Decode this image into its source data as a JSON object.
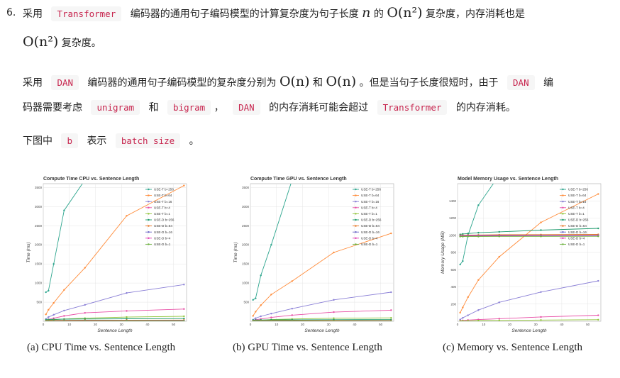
{
  "item": {
    "number": "6.",
    "p1_a": "采用",
    "p1_code": "Transformer",
    "p1_b": "编码器的通用句子编码模型的计算复杂度为句子长度",
    "p1_n": "n",
    "p1_c": "的",
    "p1_math": "O(n²)",
    "p1_d": "复杂度，内存消耗也是",
    "p1_math2": "O(n²)",
    "p1_e": "复杂度。"
  },
  "para2": {
    "a": "采用",
    "code_dan": "DAN",
    "b": "编码器的通用句子编码模型的复杂度分别为",
    "math1": "O(n)",
    "c": "和",
    "math2": "O(n)",
    "d": "。但是当句子长度很短时，由于",
    "code_dan2": "DAN",
    "e": "编",
    "f": "码器需要考虑",
    "code_unigram": "unigram",
    "g": "和",
    "code_bigram": "bigram",
    "h": "，",
    "code_dan3": "DAN",
    "i": "的内存消耗可能会超过",
    "code_transformer": "Transformer",
    "j": "的内存消耗。"
  },
  "para3": {
    "a": "下图中",
    "code_b": "b",
    "b": "表示",
    "code_batch": "batch size",
    "c": "。"
  },
  "captions": {
    "a": "(a) CPU Time vs. Sentence Length",
    "b": "(b) GPU Time vs. Sentence Length",
    "c": "(c) Memory vs. Sentence Length"
  },
  "chart_data": [
    {
      "type": "line",
      "title": "Compute Time CPU vs. Sentence Length",
      "xlabel": "Sentence Length",
      "ylabel": "Time (ms)",
      "xlim": [
        0,
        55
      ],
      "ylim": [
        0,
        3600
      ],
      "xticks": [
        0,
        10,
        20,
        30,
        40,
        50
      ],
      "yticks": [
        500,
        1000,
        1500,
        2000,
        2500,
        3000,
        3500
      ],
      "legend_position": "top-right",
      "series": [
        {
          "name": "USE-T b=256",
          "color": "#2ca58d",
          "x": [
            1,
            2,
            4,
            8,
            16
          ],
          "y": [
            760,
            800,
            1500,
            2900,
            3700
          ]
        },
        {
          "name": "USE-T b=64",
          "color": "#ff8c3a",
          "x": [
            1,
            2,
            4,
            8,
            16,
            32,
            54
          ],
          "y": [
            180,
            300,
            480,
            820,
            1400,
            2760,
            3550
          ]
        },
        {
          "name": "USE-T b=16",
          "color": "#8a7fd6",
          "x": [
            1,
            2,
            4,
            8,
            16,
            32,
            54
          ],
          "y": [
            60,
            110,
            170,
            280,
            430,
            740,
            960
          ]
        },
        {
          "name": "USE-T b=4",
          "color": "#e84fa6",
          "x": [
            1,
            2,
            4,
            8,
            16,
            32,
            54
          ],
          "y": [
            30,
            50,
            80,
            140,
            220,
            270,
            320
          ]
        },
        {
          "name": "USE-T b=1",
          "color": "#8fc436",
          "x": [
            1,
            2,
            4,
            8,
            16,
            32,
            54
          ],
          "y": [
            20,
            30,
            40,
            60,
            80,
            110,
            130
          ]
        },
        {
          "name": "USE-D b=256",
          "color": "#1d9a6c",
          "x": [
            1,
            2,
            4,
            8,
            16,
            32,
            54
          ],
          "y": [
            40,
            45,
            50,
            55,
            60,
            65,
            70
          ]
        },
        {
          "name": "USE-D b=64",
          "color": "#e8731f",
          "x": [
            1,
            2,
            4,
            8,
            16,
            32,
            54
          ],
          "y": [
            20,
            22,
            24,
            26,
            28,
            30,
            32
          ]
        },
        {
          "name": "USE-D b=16",
          "color": "#6b66c7",
          "x": [
            1,
            2,
            4,
            8,
            16,
            32,
            54
          ],
          "y": [
            12,
            13,
            14,
            15,
            16,
            17,
            18
          ]
        },
        {
          "name": "USE-D b=4",
          "color": "#e03ab0",
          "x": [
            1,
            2,
            4,
            8,
            16,
            32,
            54
          ],
          "y": [
            8,
            8,
            9,
            9,
            10,
            10,
            11
          ]
        },
        {
          "name": "USE-D b=1",
          "color": "#6db33f",
          "x": [
            1,
            2,
            4,
            8,
            16,
            32,
            54
          ],
          "y": [
            5,
            5,
            6,
            6,
            6,
            7,
            7
          ]
        }
      ]
    },
    {
      "type": "line",
      "title": "Compute Time GPU vs. Sentence Length",
      "xlabel": "Sentence Length",
      "ylabel": "Time (ms)",
      "xlim": [
        0,
        55
      ],
      "ylim": [
        0,
        3600
      ],
      "xticks": [
        0,
        10,
        20,
        30,
        40,
        50
      ],
      "yticks": [
        500,
        1000,
        1500,
        2000,
        2500,
        3000,
        3500
      ],
      "legend_position": "top-right",
      "series": [
        {
          "name": "USE-T b=256",
          "color": "#2ca58d",
          "x": [
            1,
            2,
            4,
            8,
            16
          ],
          "y": [
            560,
            600,
            1200,
            2000,
            3700
          ]
        },
        {
          "name": "USE-T b=64",
          "color": "#ff8c3a",
          "x": [
            1,
            2,
            4,
            8,
            16,
            32,
            54
          ],
          "y": [
            140,
            250,
            420,
            700,
            1050,
            1800,
            2300
          ]
        },
        {
          "name": "USE-T b=16",
          "color": "#8a7fd6",
          "x": [
            1,
            2,
            4,
            8,
            16,
            32,
            54
          ],
          "y": [
            40,
            80,
            130,
            200,
            330,
            560,
            760
          ]
        },
        {
          "name": "USE-T b=4",
          "color": "#e84fa6",
          "x": [
            1,
            2,
            4,
            8,
            16,
            32,
            54
          ],
          "y": [
            20,
            40,
            60,
            100,
            160,
            240,
            290
          ]
        },
        {
          "name": "USE-T b=1",
          "color": "#8fc436",
          "x": [
            1,
            2,
            4,
            8,
            16,
            32,
            54
          ],
          "y": [
            15,
            20,
            30,
            45,
            60,
            80,
            90
          ]
        },
        {
          "name": "USE-D b=256",
          "color": "#1d9a6c",
          "x": [
            1,
            2,
            4,
            8,
            16,
            32,
            54
          ],
          "y": [
            30,
            32,
            34,
            36,
            38,
            40,
            42
          ]
        },
        {
          "name": "USE-D b=64",
          "color": "#e8731f",
          "x": [
            1,
            2,
            4,
            8,
            16,
            32,
            54
          ],
          "y": [
            15,
            16,
            17,
            18,
            19,
            20,
            21
          ]
        },
        {
          "name": "USE-D b=16",
          "color": "#6b66c7",
          "x": [
            1,
            2,
            4,
            8,
            16,
            32,
            54
          ],
          "y": [
            10,
            10,
            11,
            11,
            12,
            12,
            13
          ]
        },
        {
          "name": "USE-D b=4",
          "color": "#e03ab0",
          "x": [
            1,
            2,
            4,
            8,
            16,
            32,
            54
          ],
          "y": [
            7,
            7,
            8,
            8,
            8,
            9,
            9
          ]
        },
        {
          "name": "USE-D b=1",
          "color": "#6db33f",
          "x": [
            1,
            2,
            4,
            8,
            16,
            32,
            54
          ],
          "y": [
            5,
            5,
            5,
            6,
            6,
            6,
            6
          ]
        }
      ]
    },
    {
      "type": "line",
      "title": "Model Memory Usage vs. Sentence Length",
      "xlabel": "Sentence Length",
      "ylabel": "Memory Usage (MB)",
      "xlim": [
        0,
        55
      ],
      "ylim": [
        0,
        1600
      ],
      "xticks": [
        0,
        10,
        20,
        30,
        40,
        50
      ],
      "yticks": [
        200,
        400,
        600,
        800,
        1000,
        1200,
        1400
      ],
      "legend_position": "top-right",
      "series": [
        {
          "name": "USE-T b=256",
          "color": "#2ca58d",
          "x": [
            1,
            2,
            4,
            8,
            16
          ],
          "y": [
            660,
            700,
            1000,
            1350,
            1700
          ]
        },
        {
          "name": "USE-T b=64",
          "color": "#ff8c3a",
          "x": [
            1,
            2,
            4,
            8,
            16,
            32,
            54
          ],
          "y": [
            100,
            160,
            280,
            480,
            750,
            1150,
            1480
          ]
        },
        {
          "name": "USE-T b=16",
          "color": "#8a7fd6",
          "x": [
            1,
            2,
            4,
            8,
            16,
            32,
            54
          ],
          "y": [
            20,
            40,
            70,
            130,
            220,
            340,
            470
          ]
        },
        {
          "name": "USE-T b=4",
          "color": "#e84fa6",
          "x": [
            1,
            2,
            4,
            8,
            16,
            32,
            54
          ],
          "y": [
            8,
            10,
            14,
            20,
            30,
            50,
            70
          ]
        },
        {
          "name": "USE-T b=1",
          "color": "#8fc436",
          "x": [
            1,
            2,
            4,
            8,
            16,
            32,
            54
          ],
          "y": [
            4,
            5,
            6,
            8,
            10,
            14,
            18
          ]
        },
        {
          "name": "USE-D b=256",
          "color": "#1d9a6c",
          "x": [
            1,
            2,
            4,
            8,
            16,
            32,
            54
          ],
          "y": [
            1010,
            1015,
            1020,
            1030,
            1040,
            1060,
            1080
          ]
        },
        {
          "name": "USE-D b=64",
          "color": "#e8731f",
          "x": [
            1,
            2,
            4,
            8,
            16,
            32,
            54
          ],
          "y": [
            1000,
            1000,
            1002,
            1004,
            1006,
            1008,
            1010
          ]
        },
        {
          "name": "USE-D b=16",
          "color": "#6b66c7",
          "x": [
            1,
            2,
            4,
            8,
            16,
            32,
            54
          ],
          "y": [
            995,
            995,
            996,
            997,
            998,
            999,
            1000
          ]
        },
        {
          "name": "USE-D b=4",
          "color": "#e03ab0",
          "x": [
            1,
            2,
            4,
            8,
            16,
            32,
            54
          ],
          "y": [
            990,
            990,
            991,
            991,
            992,
            992,
            993
          ]
        },
        {
          "name": "USE-D b=1",
          "color": "#6db33f",
          "x": [
            1,
            2,
            4,
            8,
            16,
            32,
            54
          ],
          "y": [
            985,
            985,
            986,
            986,
            987,
            987,
            988
          ]
        }
      ]
    }
  ]
}
